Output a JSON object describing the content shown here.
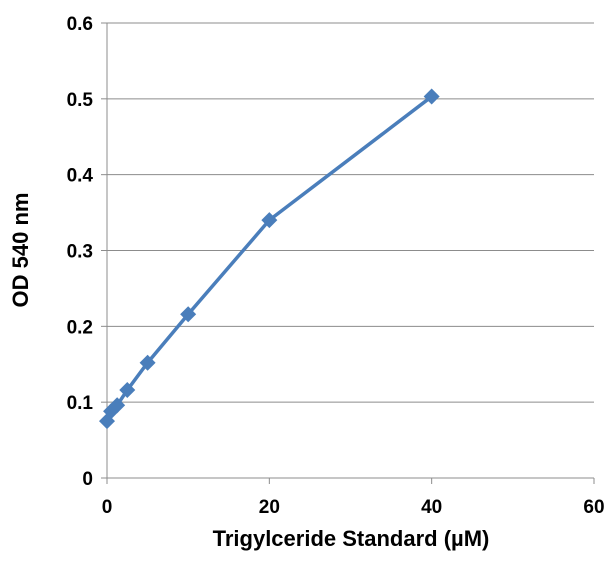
{
  "chart_data": {
    "type": "line",
    "x_label": "Trigylceride Standard (µM)",
    "y_label": "OD 540 nm",
    "series": [
      {
        "color": "#4a7ebb",
        "x": [
          0,
          0.5,
          1.25,
          2.5,
          5,
          10,
          20,
          40
        ],
        "values": [
          0.075,
          0.088,
          0.096,
          0.116,
          0.152,
          0.216,
          0.34,
          0.503
        ]
      }
    ],
    "xlim": [
      0,
      60
    ],
    "xticks": [
      0,
      20,
      40,
      60
    ],
    "ylim": [
      0,
      0.6
    ],
    "yticks": [
      0,
      0.1,
      0.2,
      0.3,
      0.4,
      0.5,
      0.6
    ],
    "grid": true
  }
}
